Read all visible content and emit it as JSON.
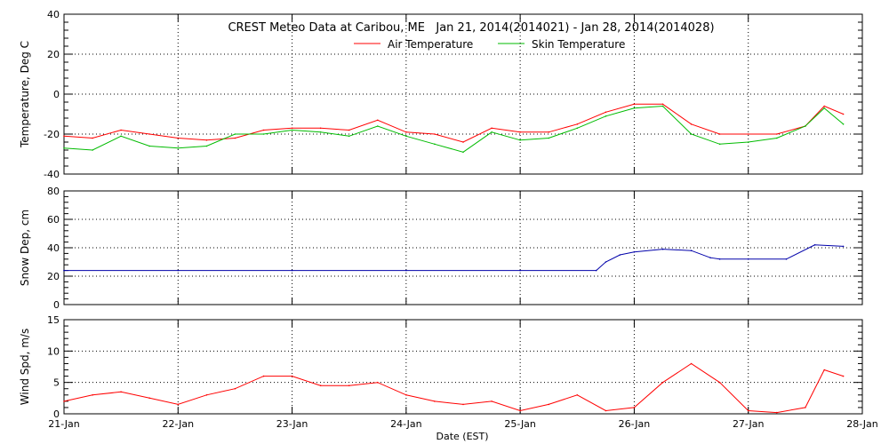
{
  "chart_data": {
    "type": "line",
    "title": "CREST Meteo Data at Caribou, ME   Jan 21, 2014(2014021) - Jan 28, 2014(2014028)",
    "xlabel": "Date (EST)",
    "x_ticks": [
      "21-Jan",
      "22-Jan",
      "23-Jan",
      "24-Jan",
      "25-Jan",
      "26-Jan",
      "27-Jan",
      "28-Jan"
    ],
    "x_range": [
      "2014-01-21",
      "2014-01-28"
    ],
    "grid": true,
    "legend": {
      "placement": "top-center"
    },
    "colors": {
      "air": "#ff0000",
      "skin": "#00bb00",
      "snow": "#0000aa",
      "wind": "#ff0000"
    },
    "panels": [
      {
        "ylabel": "Temperature, Deg C",
        "ylim": [
          -40,
          40
        ],
        "yticks": [
          "-40",
          "-20",
          "0",
          "20",
          "40"
        ],
        "series": [
          {
            "name": "Air Temperature",
            "x": [
              "2014-01-21 00:00",
              "2014-01-21 06:00",
              "2014-01-21 12:00",
              "2014-01-21 18:00",
              "2014-01-22 00:00",
              "2014-01-22 06:00",
              "2014-01-22 12:00",
              "2014-01-22 18:00",
              "2014-01-23 00:00",
              "2014-01-23 06:00",
              "2014-01-23 12:00",
              "2014-01-23 18:00",
              "2014-01-24 00:00",
              "2014-01-24 06:00",
              "2014-01-24 12:00",
              "2014-01-24 18:00",
              "2014-01-25 00:00",
              "2014-01-25 06:00",
              "2014-01-25 12:00",
              "2014-01-25 18:00",
              "2014-01-26 00:00",
              "2014-01-26 06:00",
              "2014-01-26 12:00",
              "2014-01-26 18:00",
              "2014-01-27 00:00",
              "2014-01-27 06:00",
              "2014-01-27 12:00",
              "2014-01-27 16:00",
              "2014-01-27 20:00"
            ],
            "values": [
              -21,
              -22,
              -18,
              -20,
              -22,
              -23,
              -22,
              -18,
              -17,
              -17,
              -18,
              -13,
              -19,
              -20,
              -24,
              -17,
              -19,
              -19,
              -15,
              -9,
              -5,
              -5,
              -15,
              -20,
              -20,
              -20,
              -16,
              -6,
              -10
            ]
          },
          {
            "name": "Skin Temperature",
            "x": [
              "2014-01-21 00:00",
              "2014-01-21 06:00",
              "2014-01-21 12:00",
              "2014-01-21 18:00",
              "2014-01-22 00:00",
              "2014-01-22 06:00",
              "2014-01-22 12:00",
              "2014-01-22 18:00",
              "2014-01-23 00:00",
              "2014-01-23 06:00",
              "2014-01-23 12:00",
              "2014-01-23 18:00",
              "2014-01-24 00:00",
              "2014-01-24 06:00",
              "2014-01-24 12:00",
              "2014-01-24 18:00",
              "2014-01-25 00:00",
              "2014-01-25 06:00",
              "2014-01-25 12:00",
              "2014-01-25 18:00",
              "2014-01-26 00:00",
              "2014-01-26 06:00",
              "2014-01-26 12:00",
              "2014-01-26 18:00",
              "2014-01-27 00:00",
              "2014-01-27 06:00",
              "2014-01-27 12:00",
              "2014-01-27 16:00",
              "2014-01-27 20:00"
            ],
            "values": [
              -27,
              -28,
              -21,
              -26,
              -27,
              -26,
              -20,
              -20,
              -18,
              -19,
              -21,
              -16,
              -21,
              -25,
              -29,
              -19,
              -23,
              -22,
              -17,
              -11,
              -7,
              -6,
              -20,
              -25,
              -24,
              -22,
              -16,
              -7,
              -15
            ]
          }
        ]
      },
      {
        "ylabel": "Snow Dep, cm",
        "ylim": [
          0,
          80
        ],
        "yticks": [
          "0",
          "20",
          "40",
          "60",
          "80"
        ],
        "series": [
          {
            "x": [
              "2014-01-21 00:00",
              "2014-01-22 00:00",
              "2014-01-23 00:00",
              "2014-01-24 00:00",
              "2014-01-25 00:00",
              "2014-01-25 16:00",
              "2014-01-25 18:00",
              "2014-01-25 21:00",
              "2014-01-26 00:00",
              "2014-01-26 06:00",
              "2014-01-26 12:00",
              "2014-01-26 16:00",
              "2014-01-26 18:00",
              "2014-01-27 00:00",
              "2014-01-27 08:00",
              "2014-01-27 14:00",
              "2014-01-27 20:00"
            ],
            "values": [
              24,
              24,
              24,
              24,
              24,
              24,
              30,
              35,
              37,
              39,
              38,
              33,
              32,
              32,
              32,
              42,
              41
            ]
          }
        ]
      },
      {
        "ylabel": "Wind Spd, m/s",
        "ylim": [
          0,
          15
        ],
        "yticks": [
          "0",
          "5",
          "10",
          "15"
        ],
        "series": [
          {
            "x": [
              "2014-01-21 00:00",
              "2014-01-21 06:00",
              "2014-01-21 12:00",
              "2014-01-21 18:00",
              "2014-01-22 00:00",
              "2014-01-22 06:00",
              "2014-01-22 12:00",
              "2014-01-22 18:00",
              "2014-01-23 00:00",
              "2014-01-23 06:00",
              "2014-01-23 12:00",
              "2014-01-23 18:00",
              "2014-01-24 00:00",
              "2014-01-24 06:00",
              "2014-01-24 12:00",
              "2014-01-24 18:00",
              "2014-01-25 00:00",
              "2014-01-25 06:00",
              "2014-01-25 12:00",
              "2014-01-25 18:00",
              "2014-01-26 00:00",
              "2014-01-26 06:00",
              "2014-01-26 12:00",
              "2014-01-26 18:00",
              "2014-01-27 00:00",
              "2014-01-27 06:00",
              "2014-01-27 12:00",
              "2014-01-27 16:00",
              "2014-01-27 20:00"
            ],
            "values": [
              2,
              3,
              3.5,
              2.5,
              1.5,
              3,
              4,
              6,
              6,
              4.5,
              4.5,
              5,
              3,
              2,
              1.5,
              2,
              0.5,
              1.5,
              3,
              0.5,
              1,
              5,
              8,
              5,
              0.5,
              0.2,
              1,
              7,
              6
            ]
          }
        ]
      }
    ]
  }
}
